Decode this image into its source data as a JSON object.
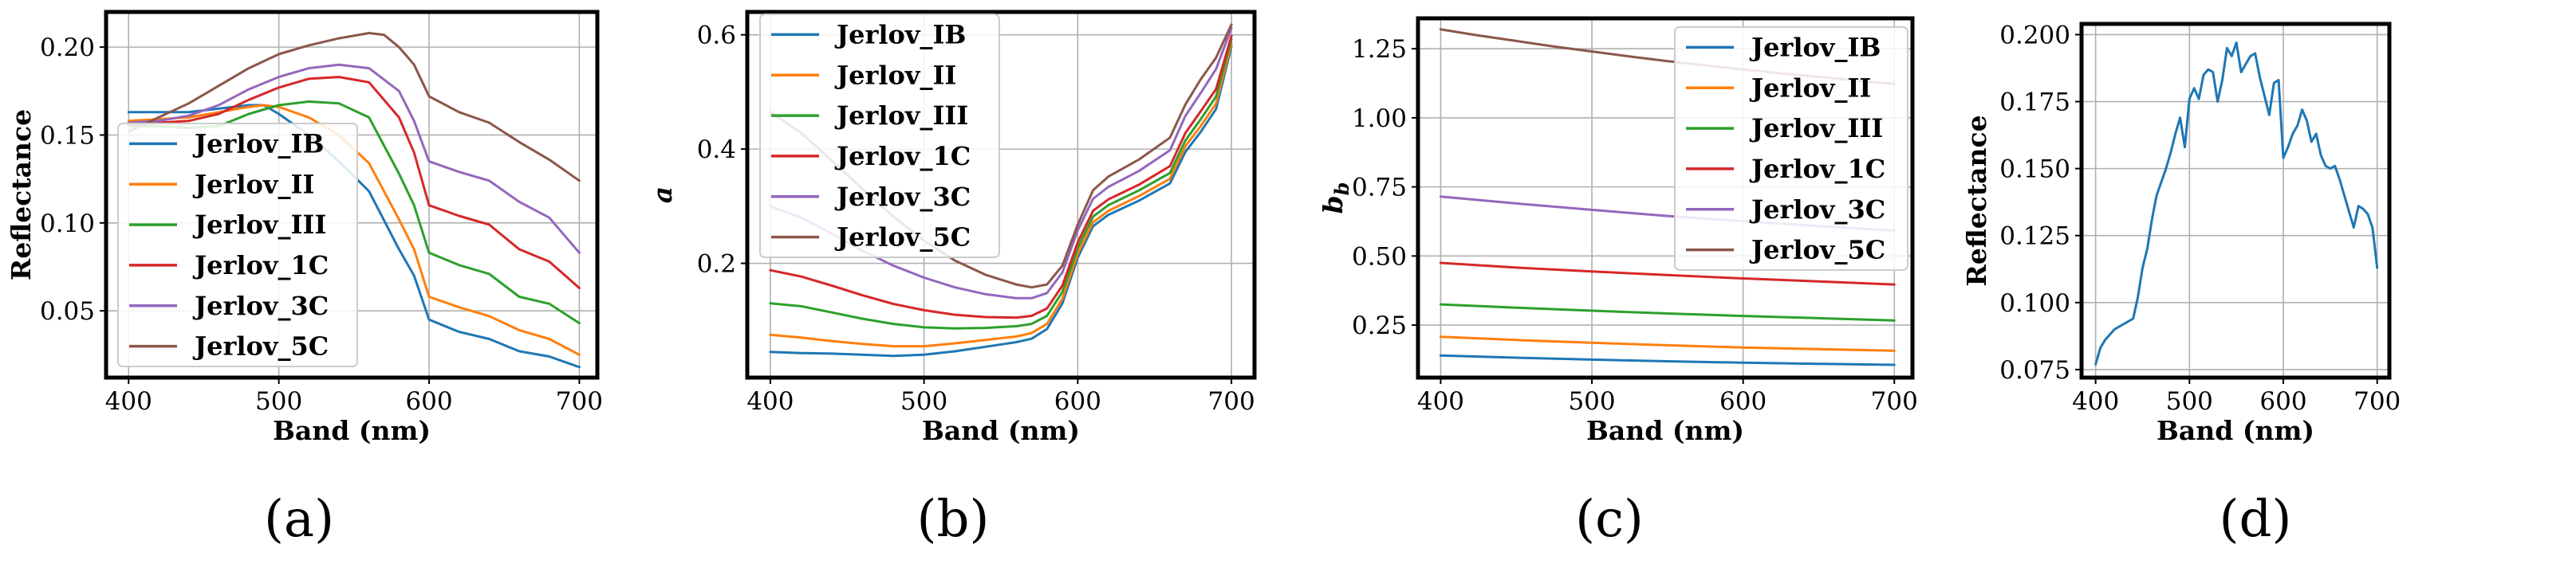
{
  "chart_data": [
    {
      "id": "a",
      "type": "line",
      "caption": "(a)",
      "xlabel": "Band (nm)",
      "ylabel": "Reflectance",
      "ylabel_italic": false,
      "xlim": [
        385,
        712
      ],
      "ylim": [
        0.012,
        0.22
      ],
      "xticks": [
        400,
        500,
        600,
        700
      ],
      "xtick_labels": [
        "400",
        "500",
        "600",
        "700"
      ],
      "yticks": [
        0.05,
        0.1,
        0.15,
        0.2
      ],
      "ytick_labels": [
        "0.05",
        "0.10",
        "0.15",
        "0.20"
      ],
      "grid": true,
      "legend_position": "lower-left",
      "series": [
        {
          "name": "Jerlov_IB",
          "color": "#1f77b4",
          "x": [
            400,
            420,
            440,
            460,
            480,
            490,
            500,
            520,
            540,
            560,
            580,
            590,
            600,
            620,
            640,
            660,
            680,
            700
          ],
          "y": [
            0.163,
            0.163,
            0.163,
            0.165,
            0.167,
            0.167,
            0.162,
            0.15,
            0.135,
            0.118,
            0.085,
            0.07,
            0.045,
            0.038,
            0.034,
            0.027,
            0.024,
            0.018
          ]
        },
        {
          "name": "Jerlov_II",
          "color": "#ff7f0e",
          "x": [
            400,
            420,
            440,
            460,
            480,
            490,
            500,
            520,
            540,
            560,
            580,
            590,
            600,
            620,
            640,
            660,
            680,
            700
          ],
          "y": [
            0.158,
            0.159,
            0.16,
            0.163,
            0.166,
            0.167,
            0.166,
            0.16,
            0.15,
            0.134,
            0.102,
            0.085,
            0.058,
            0.052,
            0.047,
            0.039,
            0.034,
            0.025
          ]
        },
        {
          "name": "Jerlov_III",
          "color": "#2ca02c",
          "x": [
            400,
            420,
            440,
            460,
            480,
            500,
            520,
            540,
            560,
            580,
            590,
            600,
            620,
            640,
            660,
            680,
            700
          ],
          "y": [
            0.155,
            0.155,
            0.154,
            0.155,
            0.162,
            0.167,
            0.169,
            0.168,
            0.16,
            0.128,
            0.11,
            0.083,
            0.076,
            0.071,
            0.058,
            0.054,
            0.043
          ]
        },
        {
          "name": "Jerlov_1C",
          "color": "#d62728",
          "x": [
            400,
            420,
            440,
            460,
            480,
            500,
            520,
            540,
            560,
            580,
            590,
            600,
            620,
            640,
            660,
            680,
            700
          ],
          "y": [
            0.156,
            0.157,
            0.158,
            0.162,
            0.17,
            0.177,
            0.182,
            0.183,
            0.18,
            0.16,
            0.14,
            0.11,
            0.104,
            0.099,
            0.085,
            0.078,
            0.063
          ]
        },
        {
          "name": "Jerlov_3C",
          "color": "#9467bd",
          "x": [
            400,
            420,
            440,
            460,
            480,
            500,
            520,
            540,
            560,
            580,
            590,
            600,
            620,
            640,
            660,
            680,
            700
          ],
          "y": [
            0.157,
            0.158,
            0.161,
            0.167,
            0.176,
            0.183,
            0.188,
            0.19,
            0.188,
            0.175,
            0.158,
            0.135,
            0.129,
            0.124,
            0.112,
            0.103,
            0.083
          ]
        },
        {
          "name": "Jerlov_5C",
          "color": "#8c564b",
          "x": [
            400,
            420,
            440,
            460,
            480,
            500,
            520,
            540,
            560,
            570,
            580,
            590,
            600,
            620,
            640,
            660,
            680,
            700
          ],
          "y": [
            0.152,
            0.16,
            0.168,
            0.178,
            0.188,
            0.196,
            0.201,
            0.205,
            0.208,
            0.207,
            0.2,
            0.19,
            0.172,
            0.163,
            0.157,
            0.146,
            0.136,
            0.124
          ]
        }
      ]
    },
    {
      "id": "b",
      "type": "line",
      "caption": "(b)",
      "xlabel": "Band (nm)",
      "ylabel": "a",
      "ylabel_italic": true,
      "xlim": [
        385,
        715
      ],
      "ylim": [
        0.0,
        0.64
      ],
      "xticks": [
        400,
        500,
        600,
        700
      ],
      "xtick_labels": [
        "400",
        "500",
        "600",
        "700"
      ],
      "yticks": [
        0.2,
        0.4,
        0.6
      ],
      "ytick_labels": [
        "0.2",
        "0.4",
        "0.6"
      ],
      "grid": true,
      "legend_position": "upper-left",
      "series": [
        {
          "name": "Jerlov_IB",
          "color": "#1f77b4",
          "x": [
            400,
            420,
            440,
            460,
            480,
            500,
            520,
            540,
            560,
            570,
            580,
            590,
            600,
            610,
            620,
            640,
            660,
            670,
            680,
            690,
            700
          ],
          "y": [
            0.045,
            0.043,
            0.042,
            0.04,
            0.038,
            0.04,
            0.046,
            0.054,
            0.062,
            0.068,
            0.085,
            0.13,
            0.21,
            0.265,
            0.285,
            0.31,
            0.34,
            0.395,
            0.43,
            0.47,
            0.58
          ]
        },
        {
          "name": "Jerlov_II",
          "color": "#ff7f0e",
          "x": [
            400,
            420,
            440,
            460,
            480,
            500,
            520,
            540,
            560,
            570,
            580,
            590,
            600,
            610,
            620,
            640,
            660,
            670,
            680,
            690,
            700
          ],
          "y": [
            0.075,
            0.07,
            0.064,
            0.059,
            0.055,
            0.055,
            0.06,
            0.066,
            0.072,
            0.078,
            0.094,
            0.138,
            0.217,
            0.272,
            0.292,
            0.318,
            0.348,
            0.405,
            0.44,
            0.48,
            0.585
          ]
        },
        {
          "name": "Jerlov_III",
          "color": "#2ca02c",
          "x": [
            400,
            420,
            440,
            460,
            480,
            500,
            520,
            540,
            560,
            570,
            580,
            590,
            600,
            610,
            620,
            640,
            660,
            670,
            680,
            690,
            700
          ],
          "y": [
            0.13,
            0.125,
            0.114,
            0.103,
            0.094,
            0.088,
            0.086,
            0.087,
            0.09,
            0.094,
            0.108,
            0.15,
            0.227,
            0.282,
            0.302,
            0.328,
            0.358,
            0.415,
            0.452,
            0.492,
            0.592
          ]
        },
        {
          "name": "Jerlov_1C",
          "color": "#d62728",
          "x": [
            400,
            420,
            440,
            460,
            480,
            500,
            520,
            540,
            560,
            570,
            580,
            590,
            600,
            610,
            620,
            640,
            660,
            670,
            680,
            690,
            700
          ],
          "y": [
            0.188,
            0.177,
            0.161,
            0.144,
            0.129,
            0.118,
            0.11,
            0.106,
            0.105,
            0.108,
            0.121,
            0.161,
            0.237,
            0.292,
            0.312,
            0.338,
            0.37,
            0.428,
            0.466,
            0.505,
            0.598
          ]
        },
        {
          "name": "Jerlov_3C",
          "color": "#9467bd",
          "x": [
            400,
            420,
            440,
            460,
            480,
            500,
            520,
            540,
            560,
            570,
            580,
            590,
            600,
            610,
            620,
            640,
            660,
            670,
            680,
            690,
            700
          ],
          "y": [
            0.3,
            0.28,
            0.252,
            0.222,
            0.196,
            0.175,
            0.158,
            0.146,
            0.139,
            0.139,
            0.148,
            0.184,
            0.258,
            0.313,
            0.334,
            0.362,
            0.398,
            0.458,
            0.498,
            0.54,
            0.612
          ]
        },
        {
          "name": "Jerlov_5C",
          "color": "#8c564b",
          "x": [
            400,
            420,
            440,
            460,
            480,
            500,
            520,
            540,
            560,
            570,
            580,
            590,
            600,
            610,
            620,
            640,
            660,
            670,
            680,
            690,
            700
          ],
          "y": [
            0.465,
            0.428,
            0.38,
            0.33,
            0.282,
            0.24,
            0.205,
            0.18,
            0.163,
            0.158,
            0.163,
            0.196,
            0.268,
            0.328,
            0.352,
            0.382,
            0.42,
            0.478,
            0.522,
            0.56,
            0.618
          ]
        }
      ]
    },
    {
      "id": "c",
      "type": "line",
      "caption": "(c)",
      "xlabel": "Band (nm)",
      "ylabel": "b_b",
      "ylabel_italic": true,
      "xlim": [
        385,
        712
      ],
      "ylim": [
        0.06,
        1.36
      ],
      "xticks": [
        400,
        500,
        600,
        700
      ],
      "xtick_labels": [
        "400",
        "500",
        "600",
        "700"
      ],
      "yticks": [
        0.25,
        0.5,
        0.75,
        1.0,
        1.25
      ],
      "ytick_labels": [
        "0.25",
        "0.50",
        "0.75",
        "1.00",
        "1.25"
      ],
      "grid": true,
      "legend_position": "upper-right",
      "series": [
        {
          "name": "Jerlov_IB",
          "color": "#1f77b4",
          "x": [
            400,
            450,
            500,
            550,
            600,
            650,
            700
          ],
          "y": [
            0.14,
            0.132,
            0.125,
            0.119,
            0.114,
            0.11,
            0.106
          ]
        },
        {
          "name": "Jerlov_II",
          "color": "#ff7f0e",
          "x": [
            400,
            450,
            500,
            550,
            600,
            650,
            700
          ],
          "y": [
            0.208,
            0.196,
            0.186,
            0.177,
            0.169,
            0.163,
            0.157
          ]
        },
        {
          "name": "Jerlov_III",
          "color": "#2ca02c",
          "x": [
            400,
            450,
            500,
            550,
            600,
            650,
            700
          ],
          "y": [
            0.325,
            0.313,
            0.302,
            0.292,
            0.283,
            0.275,
            0.267
          ]
        },
        {
          "name": "Jerlov_1C",
          "color": "#d62728",
          "x": [
            400,
            450,
            500,
            550,
            600,
            650,
            700
          ],
          "y": [
            0.475,
            0.458,
            0.444,
            0.431,
            0.419,
            0.408,
            0.397
          ]
        },
        {
          "name": "Jerlov_3C",
          "color": "#9467bd",
          "x": [
            400,
            450,
            500,
            550,
            600,
            650,
            700
          ],
          "y": [
            0.715,
            0.69,
            0.667,
            0.645,
            0.626,
            0.608,
            0.592
          ]
        },
        {
          "name": "Jerlov_5C",
          "color": "#8c564b",
          "x": [
            400,
            425,
            450,
            475,
            500,
            525,
            550,
            575,
            600,
            625,
            650,
            675,
            700
          ],
          "y": [
            1.32,
            1.298,
            1.278,
            1.258,
            1.24,
            1.222,
            1.205,
            1.19,
            1.175,
            1.161,
            1.148,
            1.135,
            1.123
          ]
        }
      ]
    },
    {
      "id": "d",
      "type": "line",
      "caption": "(d)",
      "xlabel": "Band (nm)",
      "ylabel": "Reflectance",
      "ylabel_italic": false,
      "xlim": [
        385,
        713
      ],
      "ylim": [
        0.072,
        0.204
      ],
      "xticks": [
        400,
        500,
        600,
        700
      ],
      "xtick_labels": [
        "400",
        "500",
        "600",
        "700"
      ],
      "yticks": [
        0.075,
        0.1,
        0.125,
        0.15,
        0.175,
        0.2
      ],
      "ytick_labels": [
        "0.075",
        "0.100",
        "0.125",
        "0.150",
        "0.175",
        "0.200"
      ],
      "grid": true,
      "legend_position": "none",
      "series": [
        {
          "name": "",
          "color": "#1f77b4",
          "x": [
            400,
            405,
            410,
            420,
            430,
            440,
            445,
            450,
            455,
            460,
            465,
            470,
            475,
            480,
            485,
            490,
            495,
            500,
            505,
            510,
            515,
            520,
            525,
            530,
            535,
            540,
            545,
            550,
            555,
            560,
            565,
            570,
            575,
            580,
            585,
            590,
            595,
            600,
            605,
            610,
            615,
            620,
            625,
            630,
            635,
            640,
            645,
            650,
            655,
            660,
            665,
            670,
            675,
            680,
            685,
            690,
            695,
            700
          ],
          "y": [
            0.077,
            0.083,
            0.086,
            0.09,
            0.092,
            0.094,
            0.102,
            0.113,
            0.12,
            0.131,
            0.14,
            0.145,
            0.15,
            0.156,
            0.163,
            0.169,
            0.158,
            0.176,
            0.18,
            0.176,
            0.185,
            0.187,
            0.186,
            0.175,
            0.183,
            0.195,
            0.192,
            0.197,
            0.186,
            0.189,
            0.192,
            0.193,
            0.184,
            0.177,
            0.17,
            0.182,
            0.183,
            0.154,
            0.158,
            0.163,
            0.166,
            0.172,
            0.168,
            0.16,
            0.163,
            0.155,
            0.151,
            0.15,
            0.151,
            0.146,
            0.14,
            0.134,
            0.128,
            0.136,
            0.135,
            0.133,
            0.128,
            0.113
          ]
        }
      ]
    }
  ]
}
